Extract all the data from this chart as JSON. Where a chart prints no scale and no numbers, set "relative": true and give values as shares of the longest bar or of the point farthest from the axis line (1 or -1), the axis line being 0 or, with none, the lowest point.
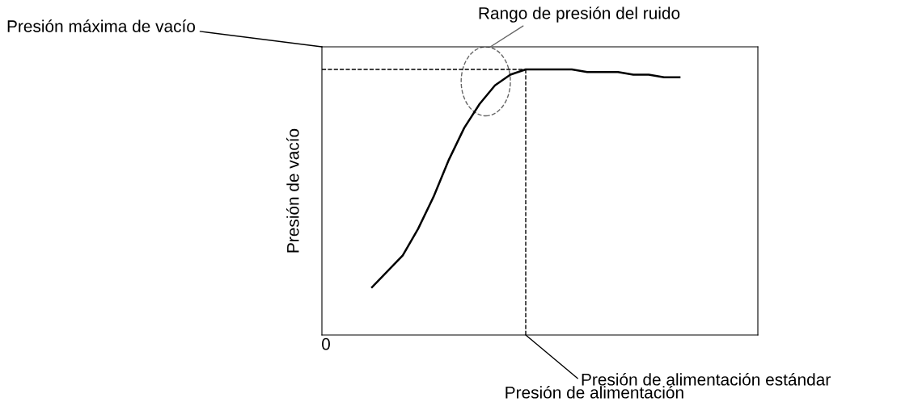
{
  "chart_data": {
    "type": "line",
    "relative": true,
    "xlabel": "Presión de alimentación",
    "ylabel": "Presión de vacío",
    "categories": [
      null,
      null,
      null,
      null,
      null,
      null,
      null,
      null,
      null,
      null,
      null,
      null,
      null,
      null,
      null,
      null,
      null,
      null,
      null,
      null,
      null
    ],
    "series": [
      {
        "color": "#000000",
        "values": [
          0.18,
          0.24,
          0.3,
          0.4,
          0.52,
          0.66,
          0.78,
          0.87,
          0.94,
          0.98,
          1.0,
          1.0,
          1.0,
          1.0,
          0.99,
          0.99,
          0.99,
          0.98,
          0.98,
          0.97,
          0.97
        ]
      }
    ],
    "ref_lines": [
      {
        "axis": "y",
        "value": 1.0,
        "label": "Presión máxima de vacío",
        "color": "#000000",
        "line_style": "dashed"
      }
    ],
    "annotations": [
      "Rango de presión del ruido",
      "0",
      "Presión de alimentación estándar"
    ],
    "legend": false,
    "marker": "none",
    "line_style": "solid"
  }
}
